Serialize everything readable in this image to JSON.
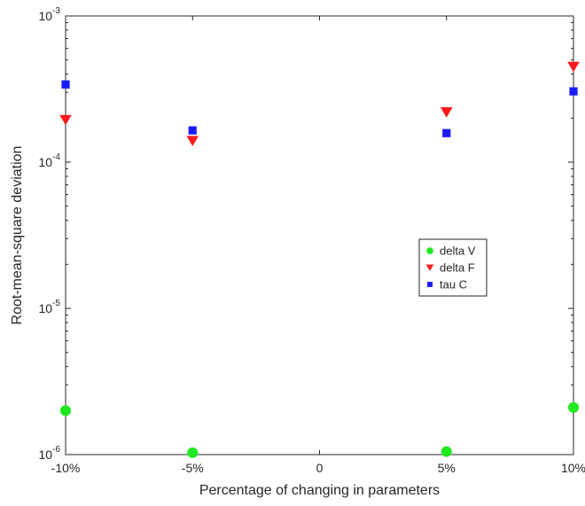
{
  "chart_data": {
    "type": "scatter",
    "title": "",
    "xlabel": "Percentage of changing in parameters",
    "ylabel": "Root-mean-square deviation",
    "x_scale": "linear",
    "y_scale": "log",
    "xlim": [
      -10,
      10
    ],
    "ylim": [
      1e-06,
      0.001
    ],
    "x_ticks": [
      -10,
      -5,
      0,
      5,
      10
    ],
    "x_tick_labels": [
      "-10%",
      "-5%",
      "0",
      "5%",
      "10%"
    ],
    "y_ticks": [
      1e-06,
      1e-05,
      0.0001,
      0.001
    ],
    "y_tick_labels": [
      {
        "base": "10",
        "exp": "-6"
      },
      {
        "base": "10",
        "exp": "-5"
      },
      {
        "base": "10",
        "exp": "-4"
      },
      {
        "base": "10",
        "exp": "-3"
      }
    ],
    "grid": false,
    "legend_position": "right",
    "series": [
      {
        "name": "delta V",
        "marker": "circle",
        "color": "#22e822",
        "x": [
          -10,
          -5,
          5,
          10
        ],
        "y": [
          2e-06,
          1.03e-06,
          1.05e-06,
          2.1e-06
        ]
      },
      {
        "name": "delta F",
        "marker": "triangle-down",
        "color": "#ff1a1a",
        "x": [
          -10,
          -5,
          5,
          10
        ],
        "y": [
          0.000195,
          0.00014,
          0.00022,
          0.00045
        ]
      },
      {
        "name": "tau C",
        "marker": "square",
        "color": "#1a1aff",
        "x": [
          -10,
          -5,
          5,
          10
        ],
        "y": [
          0.00034,
          0.000165,
          0.000158,
          0.000305
        ]
      }
    ]
  }
}
